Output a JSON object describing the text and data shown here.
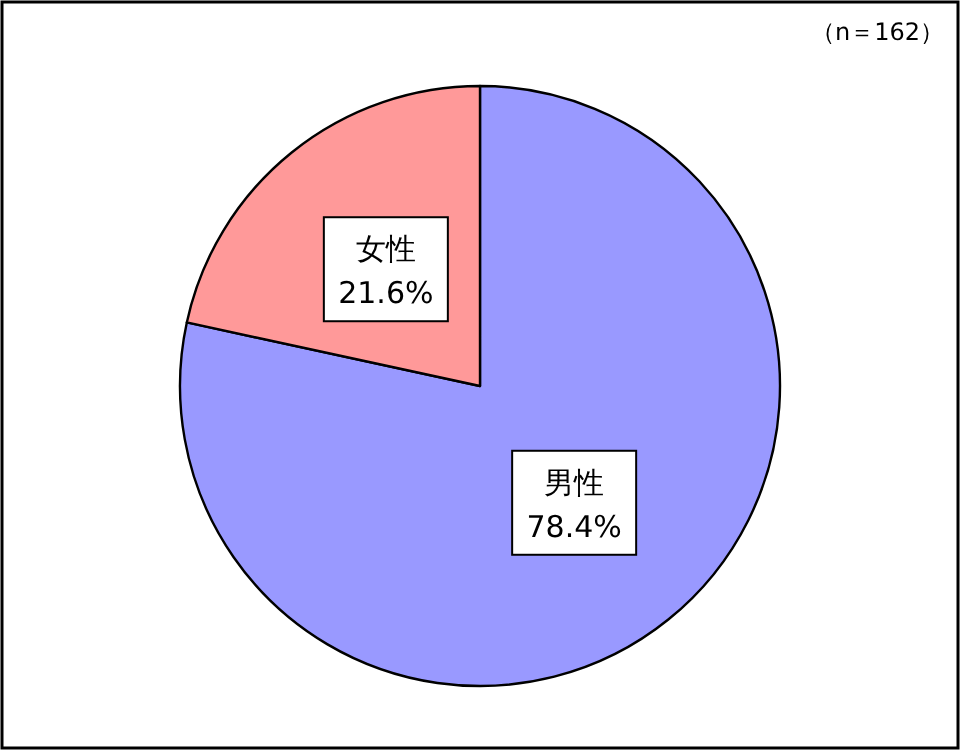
{
  "chart_data": {
    "type": "pie",
    "categories": [
      "男性",
      "女性"
    ],
    "values": [
      78.4,
      21.6
    ],
    "value_labels": [
      "78.4%",
      "21.6%"
    ],
    "colors": [
      "#9999ff",
      "#ff9999"
    ],
    "annotations": [
      "（n＝162）"
    ]
  }
}
